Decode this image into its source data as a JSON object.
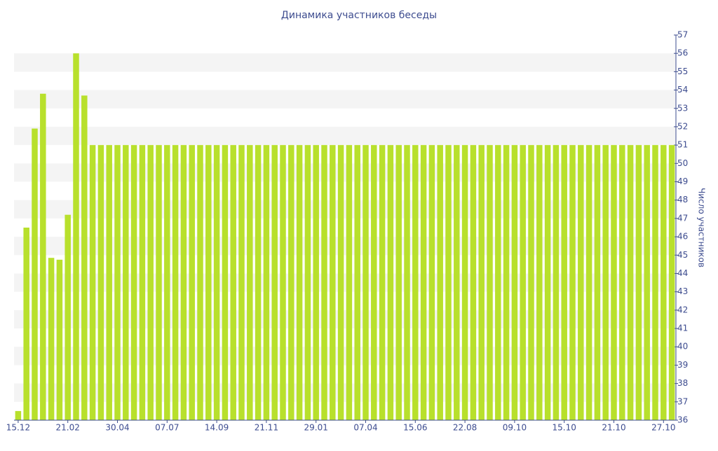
{
  "chart_data": {
    "type": "bar",
    "title": "Динамика участников беседы",
    "y_label": "Число участников",
    "categories": [
      "15.12",
      null,
      null,
      null,
      null,
      null,
      "21.02",
      null,
      null,
      null,
      null,
      null,
      "30.04",
      null,
      null,
      null,
      null,
      null,
      "07.07",
      null,
      null,
      null,
      null,
      null,
      "14.09",
      null,
      null,
      null,
      null,
      null,
      "21.11",
      null,
      null,
      null,
      null,
      null,
      "29.01",
      null,
      null,
      null,
      null,
      null,
      "07.04",
      null,
      null,
      null,
      null,
      null,
      "15.06",
      null,
      null,
      null,
      null,
      null,
      "22.08",
      null,
      null,
      null,
      null,
      null,
      "09.10",
      null,
      null,
      null,
      null,
      null,
      "15.10",
      null,
      null,
      null,
      null,
      null,
      "21.10",
      null,
      null,
      null,
      null,
      null,
      "27.10",
      null
    ],
    "values": [
      36.5,
      46.5,
      51.9,
      53.8,
      44.85,
      44.75,
      47.2,
      56,
      53.7,
      51,
      51,
      51,
      51,
      51,
      51,
      51,
      51,
      51,
      51,
      51,
      51,
      51,
      51,
      51,
      51,
      51,
      51,
      51,
      51,
      51,
      51,
      51,
      51,
      51,
      51,
      51,
      51,
      51,
      51,
      51,
      51,
      51,
      51,
      51,
      51,
      51,
      51,
      51,
      51,
      51,
      51,
      51,
      51,
      51,
      51,
      51,
      51,
      51,
      51,
      51,
      51,
      51,
      51,
      51,
      51,
      51,
      51,
      51,
      51,
      51,
      51,
      51,
      51,
      51,
      51,
      51,
      51,
      51,
      51,
      51
    ],
    "color": "#b8e02c",
    "ylim": [
      36,
      57
    ],
    "yticks": [
      36,
      37,
      38,
      39,
      40,
      41,
      42,
      43,
      44,
      45,
      46,
      47,
      48,
      49,
      50,
      51,
      52,
      53,
      54,
      55,
      56,
      57
    ],
    "y_axis_side": "right",
    "banded_background": true
  }
}
